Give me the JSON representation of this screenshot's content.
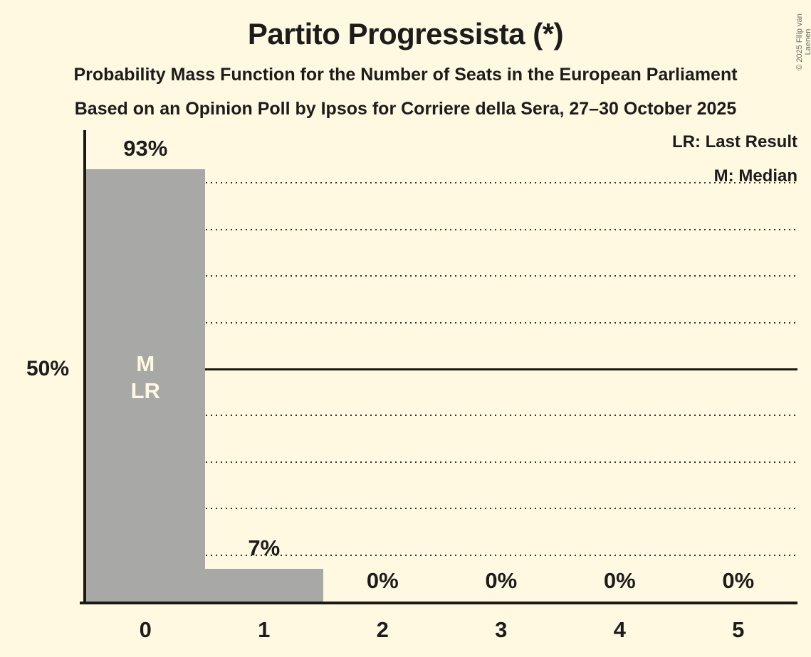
{
  "title": "Partito Progressista (*)",
  "subtitles": {
    "line1": "Probability Mass Function for the Number of Seats in the European Parliament",
    "line2": "Based on an Opinion Poll by Ipsos for Corriere della Sera, 27–30 October 2025"
  },
  "legend": {
    "last_result": "LR: Last Result",
    "median": "M: Median"
  },
  "y_axis": {
    "label_50": "50%"
  },
  "copyright": "© 2025 Filip van Laenen",
  "chart_data": {
    "type": "bar",
    "title": "Partito Progressista (*)",
    "categories": [
      "0",
      "1",
      "2",
      "3",
      "4",
      "5"
    ],
    "values": [
      93,
      7,
      0,
      0,
      0,
      0
    ],
    "value_labels": [
      "93%",
      "7%",
      "0%",
      "0%",
      "0%",
      "0%"
    ],
    "ylim": [
      0,
      100
    ],
    "gridline_interval_pct": 10,
    "solid_gridline_at_pct": 50,
    "grid": "dotted-horizontal",
    "legend_position": "top-right",
    "median_seat_index": 0,
    "last_result_seat_index": 0,
    "bar_annotations": {
      "median": "M",
      "last_result": "LR"
    },
    "colors": {
      "background": "#FFF9E1",
      "bar": "#A8A8A6",
      "text": "#1C1C1C",
      "bar_annotation_text": "#FFF9E1",
      "axis": "#1A1A14",
      "copyright_text": "#6B6B60"
    }
  }
}
